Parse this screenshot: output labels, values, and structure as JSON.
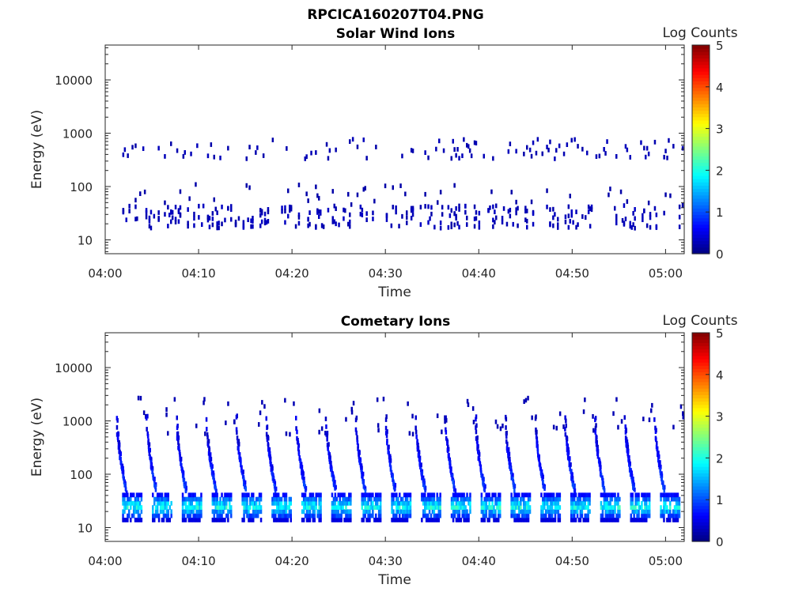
{
  "figure_title": "RPCICA160207T04.PNG",
  "chart_data": [
    {
      "type": "heatmap",
      "title": "Solar Wind Ions",
      "xlabel": "Time",
      "ylabel": "Energy (eV)",
      "x_ticks": [
        "04:00",
        "04:10",
        "04:20",
        "04:30",
        "04:40",
        "04:50",
        "05:00"
      ],
      "x_range": [
        "04:00",
        "05:02"
      ],
      "y_scale": "log",
      "y_ticks": [
        "10",
        "100",
        "1000",
        "10000"
      ],
      "y_range": [
        5.5,
        45000
      ],
      "colorbar": {
        "label": "Log Counts",
        "ticks": [
          "0",
          "1",
          "2",
          "3",
          "4",
          "5"
        ],
        "range": [
          0,
          5
        ],
        "colormap": "jet"
      },
      "features": {
        "low_energy_band_eV": [
          15,
          40
        ],
        "high_energy_band_eV": [
          300,
          700
        ],
        "typical_log_counts": 0.2
      }
    },
    {
      "type": "heatmap",
      "title": "Cometary Ions",
      "xlabel": "Time",
      "ylabel": "Energy (eV)",
      "x_ticks": [
        "04:00",
        "04:10",
        "04:20",
        "04:30",
        "04:40",
        "04:50",
        "05:00"
      ],
      "x_range": [
        "04:00",
        "05:02"
      ],
      "y_scale": "log",
      "y_ticks": [
        "10",
        "100",
        "1000",
        "10000"
      ],
      "y_range": [
        5.5,
        45000
      ],
      "colorbar": {
        "label": "Log Counts",
        "ticks": [
          "0",
          "1",
          "2",
          "3",
          "4",
          "5"
        ],
        "range": [
          0,
          5
        ],
        "colormap": "jet"
      },
      "features": {
        "repeating_energy_sweep_period_min": 3.2,
        "sweep_start_minutes": [
          1.5,
          4.7,
          7.9,
          11.1,
          14.3,
          17.5,
          20.7,
          23.9,
          27.1,
          30.3,
          33.5,
          36.7,
          39.9,
          43.1,
          46.3,
          49.5,
          52.7,
          55.9,
          59.1
        ],
        "peak_log_counts": 2.0
      }
    }
  ]
}
